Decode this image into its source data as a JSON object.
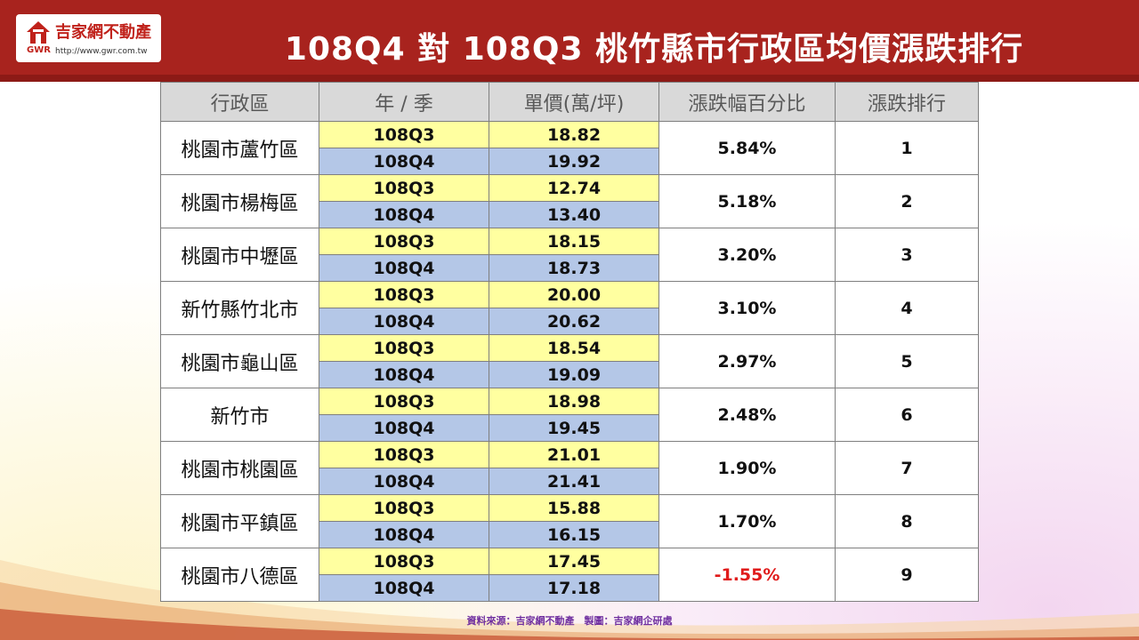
{
  "logo": {
    "name": "吉家網不動產",
    "gwr": "GWR",
    "url": "http://www.gwr.com.tw"
  },
  "title": "108Q4 對 108Q3 桃竹縣市行政區均價漲跌排行",
  "table": {
    "headers": [
      "行政區",
      "年 / 季",
      "單價(萬/坪)",
      "漲跌幅百分比",
      "漲跌排行"
    ],
    "rows": [
      {
        "district": "桃園市蘆竹區",
        "q3": "108Q3",
        "p3": "18.82",
        "q4": "108Q4",
        "p4": "19.92",
        "pct": "5.84%",
        "rank": "1"
      },
      {
        "district": "桃園市楊梅區",
        "q3": "108Q3",
        "p3": "12.74",
        "q4": "108Q4",
        "p4": "13.40",
        "pct": "5.18%",
        "rank": "2"
      },
      {
        "district": "桃園市中壢區",
        "q3": "108Q3",
        "p3": "18.15",
        "q4": "108Q4",
        "p4": "18.73",
        "pct": "3.20%",
        "rank": "3"
      },
      {
        "district": "新竹縣竹北市",
        "q3": "108Q3",
        "p3": "20.00",
        "q4": "108Q4",
        "p4": "20.62",
        "pct": "3.10%",
        "rank": "4"
      },
      {
        "district": "桃園市龜山區",
        "q3": "108Q3",
        "p3": "18.54",
        "q4": "108Q4",
        "p4": "19.09",
        "pct": "2.97%",
        "rank": "5"
      },
      {
        "district": "新竹市",
        "q3": "108Q3",
        "p3": "18.98",
        "q4": "108Q4",
        "p4": "19.45",
        "pct": "2.48%",
        "rank": "6"
      },
      {
        "district": "桃園市桃園區",
        "q3": "108Q3",
        "p3": "21.01",
        "q4": "108Q4",
        "p4": "21.41",
        "pct": "1.90%",
        "rank": "7"
      },
      {
        "district": "桃園市平鎮區",
        "q3": "108Q3",
        "p3": "15.88",
        "q4": "108Q4",
        "p4": "16.15",
        "pct": "1.70%",
        "rank": "8"
      },
      {
        "district": "桃園市八德區",
        "q3": "108Q3",
        "p3": "17.45",
        "q4": "108Q4",
        "p4": "17.18",
        "pct": "-1.55%",
        "rank": "9"
      }
    ]
  },
  "source": "資料來源：吉家網不動產　製圖：吉家網企研處",
  "colors": {
    "header_bg": "#a8231e",
    "q3_bg": "#ffffa0",
    "q4_bg": "#b4c7e7",
    "negative": "#e01b1b"
  }
}
